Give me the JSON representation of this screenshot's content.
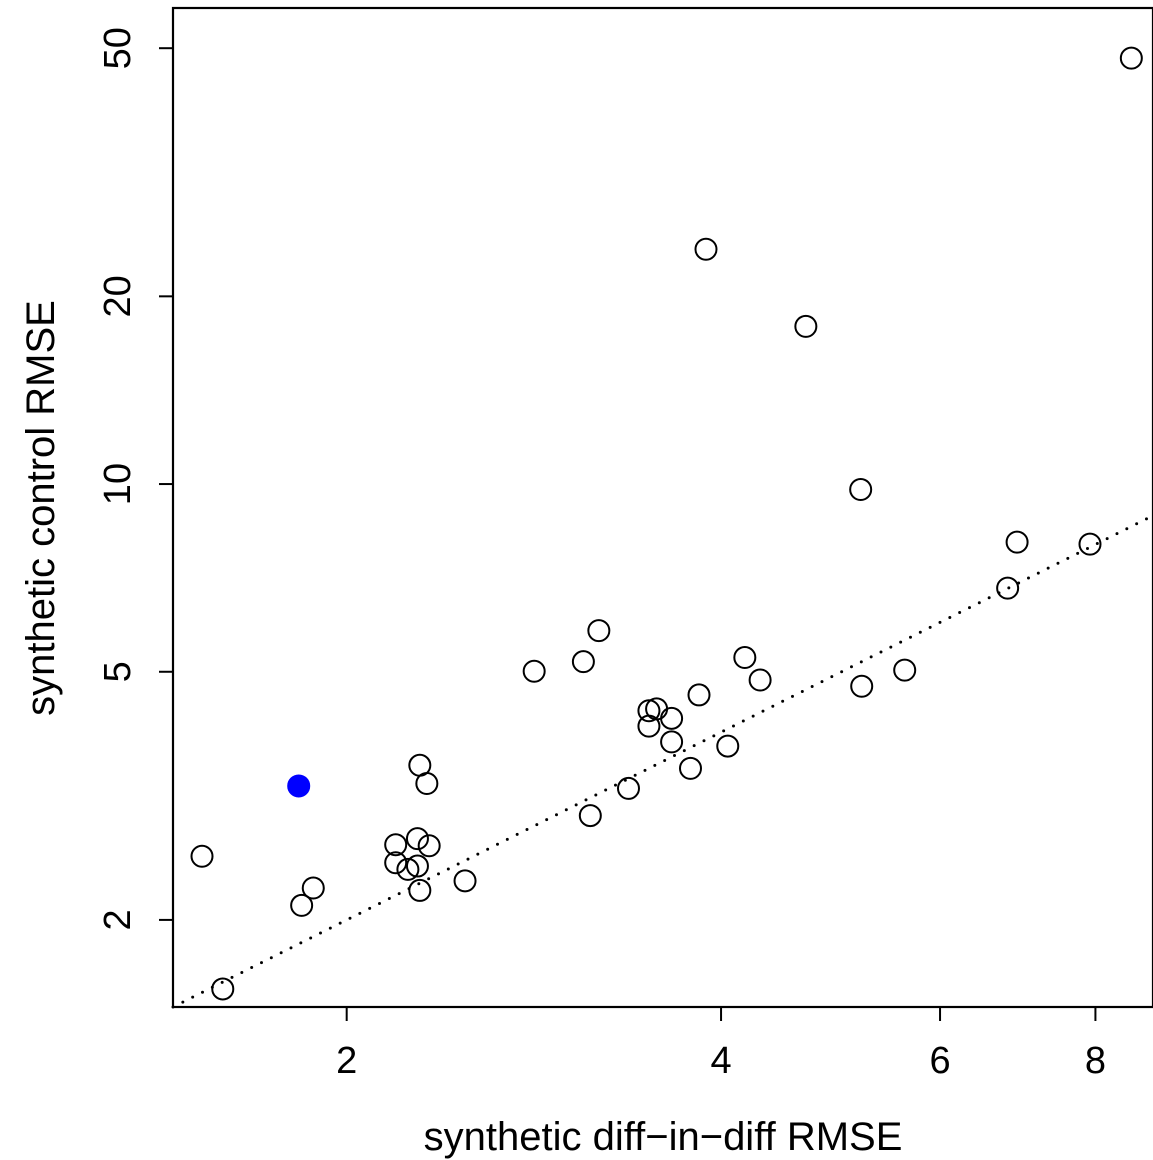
{
  "chart_data": {
    "type": "scatter",
    "title": "",
    "xlabel": "synthetic diff−in−diff RMSE",
    "ylabel": "synthetic control RMSE",
    "x_scale": "log",
    "y_scale": "log",
    "xlim": [
      1.45,
      8.9
    ],
    "ylim": [
      1.45,
      58
    ],
    "x_ticks": [
      2,
      4,
      6,
      8
    ],
    "x_tick_labels": [
      "2",
      "4",
      "6",
      "8"
    ],
    "y_ticks": [
      2,
      5,
      10,
      20,
      50
    ],
    "y_tick_labels": [
      "2",
      "5",
      "10",
      "20",
      "50"
    ],
    "grid": false,
    "legend": "none",
    "reference_line": {
      "style": "dotted",
      "y_equals_x": true
    },
    "colors": {
      "highlight": "#0000ff",
      "points": "#000000"
    },
    "highlighted_point": {
      "x": 1.83,
      "y": 3.28
    },
    "points": [
      {
        "x": 1.53,
        "y": 2.53
      },
      {
        "x": 1.59,
        "y": 1.55
      },
      {
        "x": 1.84,
        "y": 2.11
      },
      {
        "x": 1.88,
        "y": 2.25
      },
      {
        "x": 2.19,
        "y": 2.64
      },
      {
        "x": 2.19,
        "y": 2.47
      },
      {
        "x": 2.24,
        "y": 2.41
      },
      {
        "x": 2.28,
        "y": 2.7
      },
      {
        "x": 2.28,
        "y": 2.44
      },
      {
        "x": 2.29,
        "y": 2.23
      },
      {
        "x": 2.29,
        "y": 3.54
      },
      {
        "x": 2.32,
        "y": 3.31
      },
      {
        "x": 2.33,
        "y": 2.63
      },
      {
        "x": 2.49,
        "y": 2.31
      },
      {
        "x": 2.83,
        "y": 5.01
      },
      {
        "x": 3.1,
        "y": 5.19
      },
      {
        "x": 3.14,
        "y": 2.94
      },
      {
        "x": 3.19,
        "y": 5.82
      },
      {
        "x": 3.37,
        "y": 3.25
      },
      {
        "x": 3.5,
        "y": 4.33
      },
      {
        "x": 3.5,
        "y": 4.09
      },
      {
        "x": 3.55,
        "y": 4.36
      },
      {
        "x": 3.65,
        "y": 4.21
      },
      {
        "x": 3.65,
        "y": 3.86
      },
      {
        "x": 3.78,
        "y": 3.5
      },
      {
        "x": 3.84,
        "y": 4.59
      },
      {
        "x": 3.89,
        "y": 23.8
      },
      {
        "x": 4.05,
        "y": 3.8
      },
      {
        "x": 4.18,
        "y": 5.27
      },
      {
        "x": 4.3,
        "y": 4.85
      },
      {
        "x": 4.68,
        "y": 17.9
      },
      {
        "x": 5.18,
        "y": 9.8
      },
      {
        "x": 5.19,
        "y": 4.74
      },
      {
        "x": 5.62,
        "y": 5.03
      },
      {
        "x": 6.8,
        "y": 6.81
      },
      {
        "x": 6.92,
        "y": 8.07
      },
      {
        "x": 7.92,
        "y": 8.01
      },
      {
        "x": 8.55,
        "y": 48.2
      }
    ]
  }
}
